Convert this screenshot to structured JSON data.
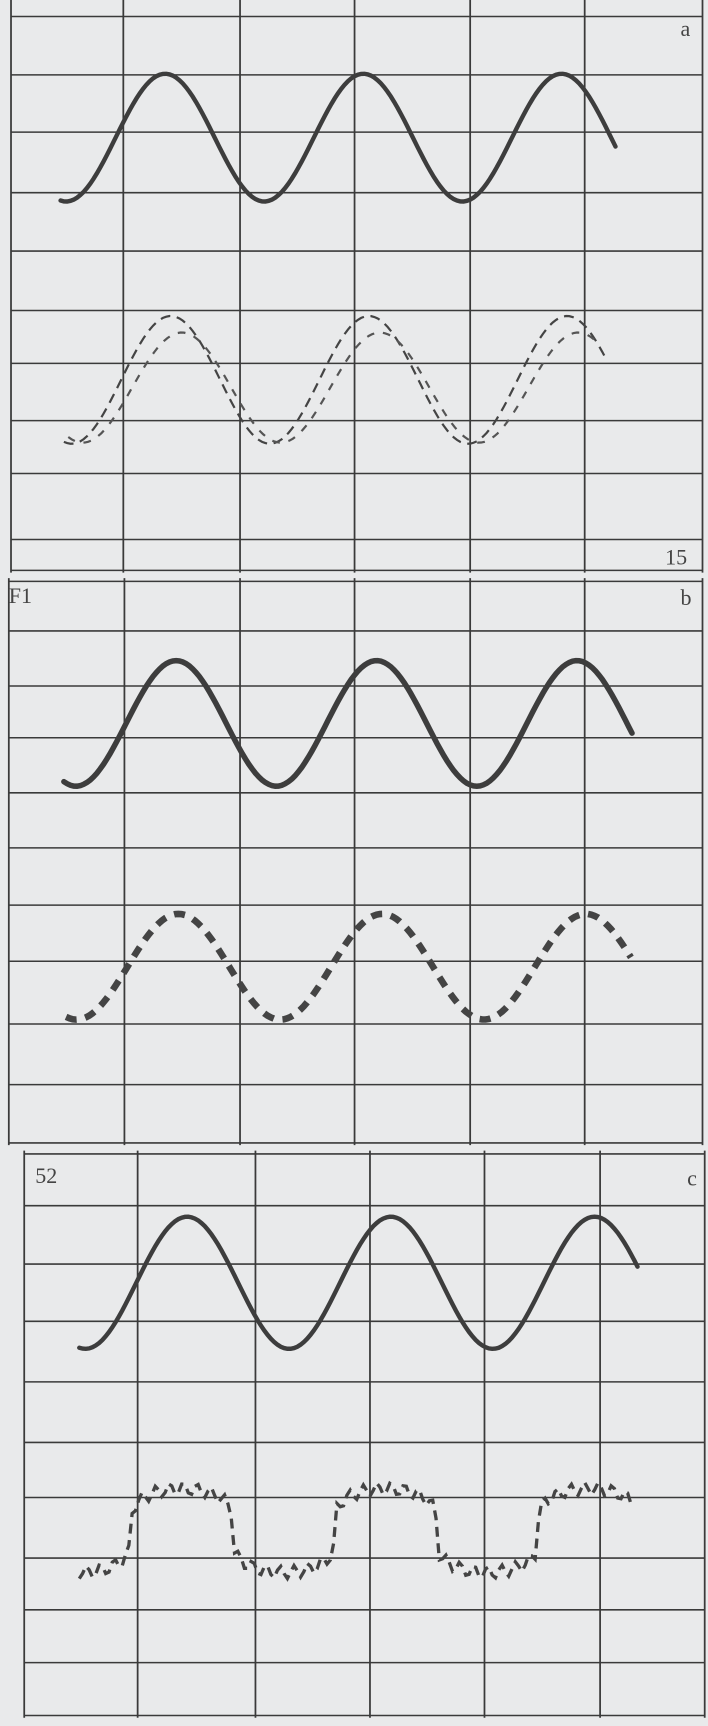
{
  "panels": [
    {
      "label": "a",
      "note": "15"
    },
    {
      "label": "b",
      "note": "F1"
    },
    {
      "label": "c",
      "note": "52"
    }
  ]
}
